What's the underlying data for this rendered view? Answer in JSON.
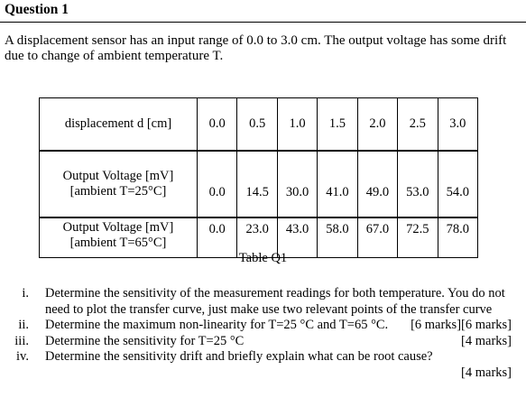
{
  "title": "Question 1",
  "intro": "A displacement sensor has an input range of 0.0 to 3.0 cm. The output voltage has some drift due to change of ambient temperature T.",
  "table": {
    "rows": [
      {
        "label": [
          "displacement d [cm]"
        ],
        "values": [
          "0.0",
          "0.5",
          "1.0",
          "1.5",
          "2.0",
          "2.5",
          "3.0"
        ]
      },
      {
        "label": [
          "Output Voltage [mV]",
          "[ambient T=25°C]"
        ],
        "values": [
          "0.0",
          "14.5",
          "30.0",
          "41.0",
          "49.0",
          "53.0",
          "54.0"
        ]
      },
      {
        "label": [
          "Output Voltage [mV]",
          "[ambient T=65°C]"
        ],
        "values": [
          "0.0",
          "23.0",
          "43.0",
          "58.0",
          "67.0",
          "72.5",
          "78.0"
        ]
      }
    ],
    "caption": "Table Q1"
  },
  "questions": [
    {
      "num": "i.",
      "text": "Determine the sensitivity of the measurement readings for both temperature. You do not need to plot the transfer curve, just make use two relevant points of the transfer curve",
      "marks": "[6 marks]"
    },
    {
      "num": "ii.",
      "text": "Determine the maximum non-linearity for T=25 °C and T=65 °C.",
      "marks": "[6 marks]"
    },
    {
      "num": "iii.",
      "text": "Determine the sensitivity for T=25 °C",
      "marks": "[4 marks]"
    },
    {
      "num": "iv.",
      "text": "Determine the sensitivity drift and briefly explain what can be root cause?",
      "marks": "[4 marks]"
    }
  ]
}
